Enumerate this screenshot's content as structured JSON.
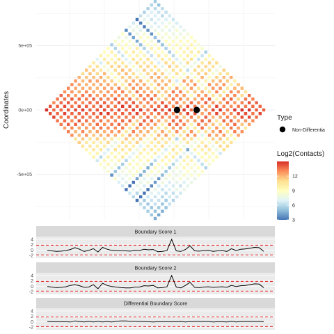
{
  "chart_data": [
    {
      "type": "heatmap",
      "title": "",
      "xlabel": "",
      "ylabel": "Coordinates",
      "y_ticks": [
        {
          "value": 500000,
          "label": "5e+05"
        },
        {
          "value": 0,
          "label": "0e+00"
        },
        {
          "value": -500000,
          "label": "-5e+05"
        }
      ],
      "ylim": [
        -850000,
        850000
      ],
      "shape": "diamond (rotated Hi-C contact matrix)",
      "color_scale": {
        "name": "Log2(Contacts)",
        "min": 3,
        "max": 15,
        "ticks": [
          3,
          6,
          9,
          12
        ],
        "palette": "RdYlBu (reversed)",
        "colors": [
          "#4575b4",
          "#91bfdb",
          "#e0f3f8",
          "#ffffbf",
          "#fee090",
          "#fc8d59",
          "#d73027"
        ]
      },
      "points": {
        "legend_title": "Type",
        "legend_label": "Non-Differentia",
        "color": "#000000",
        "positions_fraction": [
          0.6,
          0.69
        ]
      },
      "grid": true
    },
    {
      "type": "line",
      "title": "Boundary Score 1",
      "y_ticks": [
        4,
        2,
        0,
        -2
      ],
      "ylim": [
        -3,
        5
      ],
      "thresholds": [
        1.8,
        -1.8
      ],
      "threshold_color": "#e41a1c",
      "values": [
        -0.1,
        -0.3,
        -0.5,
        -0.4,
        -0.2,
        0.2,
        0.9,
        0.3,
        -0.5,
        -0.1,
        0.5,
        -0.7,
        1.0,
        0.3,
        -0.1,
        -0.2,
        -0.3,
        -0.3,
        -0.4,
        -0.1,
        -0.2,
        0.3,
        0.1,
        0.2,
        -0.6,
        -0.5,
        -0.2,
        4.0,
        -0.3,
        -0.5,
        0.2,
        1.6,
        -0.3,
        -0.4,
        -0.2,
        -0.1,
        -0.5,
        -0.3,
        -0.2,
        -0.5,
        0.5,
        -0.2,
        0.3,
        0.4,
        0.7,
        1.0,
        0.9,
        -0.5
      ]
    },
    {
      "type": "line",
      "title": "Boundary Score 2",
      "y_ticks": [
        4,
        2,
        0,
        -2
      ],
      "ylim": [
        -3,
        5
      ],
      "thresholds": [
        1.8,
        -1.8
      ],
      "threshold_color": "#e41a1c",
      "values": [
        -0.1,
        -0.3,
        -0.5,
        -0.4,
        -0.2,
        0.3,
        0.6,
        0.2,
        -0.4,
        -0.3,
        0.6,
        -0.9,
        1.1,
        0.3,
        -0.1,
        -0.3,
        -0.5,
        -0.6,
        -0.6,
        -0.3,
        -0.3,
        0.2,
        0.1,
        0.3,
        -0.6,
        -0.5,
        -0.2,
        4.0,
        -0.3,
        -0.6,
        0.3,
        1.5,
        -0.4,
        -0.5,
        -0.3,
        -0.2,
        -0.4,
        -0.3,
        -0.2,
        -0.4,
        0.3,
        -0.1,
        0.2,
        0.3,
        0.6,
        0.9,
        0.8,
        -0.5
      ]
    },
    {
      "type": "line",
      "title": "Differential Boundary Score",
      "y_ticks": [
        4,
        2,
        0,
        -2
      ],
      "ylim": [
        -3,
        5
      ],
      "thresholds": [
        1.8,
        -1.8
      ],
      "threshold_color": "#e41a1c",
      "values": [
        0.1,
        0.0,
        0.0,
        0.0,
        0.0,
        -0.1,
        0.3,
        0.1,
        -0.1,
        0.2,
        -0.1,
        0.2,
        -0.1,
        0.1,
        -0.1,
        0.2,
        0.3,
        0.3,
        0.2,
        0.2,
        0.1,
        0.1,
        0.0,
        -0.1,
        0.0,
        0.0,
        0.0,
        0.0,
        0.0,
        0.1,
        -0.1,
        0.1,
        0.1,
        0.1,
        0.1,
        0.1,
        -0.1,
        0.0,
        0.0,
        -0.1,
        0.2,
        -0.1,
        0.1,
        0.1,
        0.1,
        0.1,
        0.1,
        0.0
      ]
    }
  ]
}
